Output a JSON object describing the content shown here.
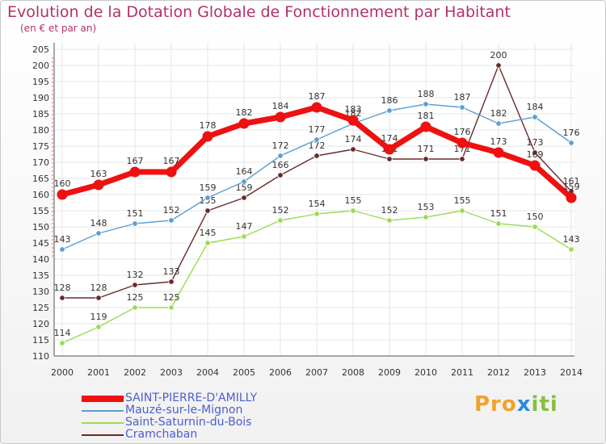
{
  "chart_data": {
    "type": "line",
    "title": "Evolution de la Dotation Globale de Fonctionnement par Habitant",
    "subtitle": "(en € et par an)",
    "x": [
      2000,
      2001,
      2002,
      2003,
      2004,
      2005,
      2006,
      2007,
      2008,
      2009,
      2010,
      2011,
      2012,
      2013,
      2014
    ],
    "ylim": [
      110,
      205
    ],
    "yticks": [
      110,
      115,
      120,
      125,
      130,
      135,
      140,
      145,
      150,
      155,
      160,
      165,
      170,
      175,
      180,
      185,
      190,
      195,
      200,
      205
    ],
    "grid": true,
    "series": [
      {
        "name": "SAINT-PIERRE-D'AMILLY",
        "color": "#ee1111",
        "values": [
          160,
          163,
          167,
          167,
          178,
          182,
          184,
          187,
          183,
          174,
          181,
          176,
          173,
          169,
          159
        ]
      },
      {
        "name": "Mauzé-sur-le-Mignon",
        "color": "#5a9fd4",
        "values": [
          143,
          148,
          151,
          152,
          159,
          164,
          172,
          177,
          182,
          186,
          188,
          187,
          182,
          184,
          176
        ]
      },
      {
        "name": "Saint-Saturnin-du-Bois",
        "color": "#99dd55",
        "values": [
          114,
          119,
          125,
          125,
          145,
          147,
          152,
          154,
          155,
          152,
          153,
          155,
          151,
          150,
          143
        ]
      },
      {
        "name": "Cramchaban",
        "color": "#6b2a2a",
        "values": [
          128,
          128,
          132,
          133,
          155,
          159,
          166,
          172,
          174,
          171,
          171,
          171,
          200,
          173,
          161
        ]
      }
    ]
  },
  "logo": {
    "part1": "Pro",
    "part2": "x",
    "part3": "iti"
  }
}
